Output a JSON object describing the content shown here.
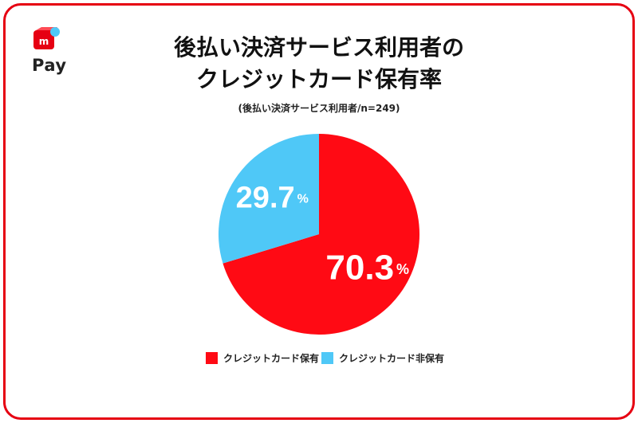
{
  "brand": {
    "logo_text": "Pay",
    "accent": "#e60012",
    "secondary": "#4fc8f7"
  },
  "title_line1": "後払い決済サービス利用者の",
  "title_line2": "クレジットカード保有率",
  "subtitle": "(後払い決済サービス利用者/n=249)",
  "chart_data": {
    "type": "pie",
    "unit": "%",
    "slices": [
      {
        "name": "クレジットカード保有",
        "value": 70.3,
        "color": "#ff0a14"
      },
      {
        "name": "クレジットカード非保有",
        "value": 29.7,
        "color": "#4fc8f7"
      }
    ],
    "legend_position": "bottom"
  }
}
